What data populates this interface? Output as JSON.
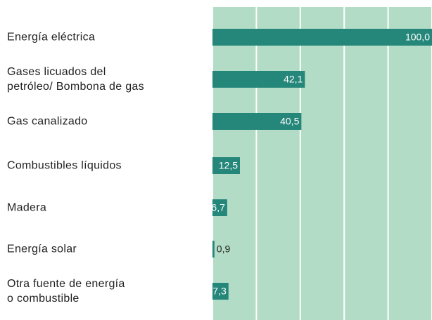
{
  "chart_data": {
    "type": "bar",
    "orientation": "horizontal",
    "categories": [
      "Energía eléctrica",
      "Gases licuados del\npetróleo/ Bombona de gas",
      "Gas canalizado",
      "Combustibles líquidos",
      "Madera",
      "Energía solar",
      "Otra fuente de energía\no combustible"
    ],
    "values": [
      100.0,
      42.1,
      40.5,
      12.5,
      6.7,
      0.9,
      7.3
    ],
    "value_labels": [
      "100,0",
      "42,1",
      "40,5",
      "12,5",
      "6,7",
      "0,9",
      "7,3"
    ],
    "color": "#25867a",
    "xlim": [
      0,
      100
    ],
    "xticks": [
      0,
      20,
      40,
      60,
      80,
      100
    ],
    "grid": true
  }
}
